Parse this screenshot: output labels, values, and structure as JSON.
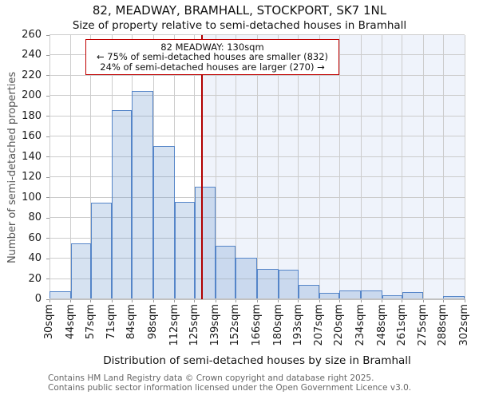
{
  "chart_data": {
    "type": "bar",
    "title": "82, MEADWAY, BRAMHALL, STOCKPORT, SK7 1NL",
    "subtitle": "Size of property relative to semi-detached houses in Bramhall",
    "xlabel": "Distribution of semi-detached houses by size in Bramhall",
    "ylabel": "Number of semi-detached properties",
    "bin_edges_sqm": [
      30,
      44,
      57,
      71,
      84,
      98,
      112,
      125,
      139,
      152,
      166,
      180,
      193,
      207,
      220,
      234,
      248,
      261,
      275,
      288,
      302
    ],
    "x_tick_labels": [
      "30sqm",
      "44sqm",
      "57sqm",
      "71sqm",
      "84sqm",
      "98sqm",
      "112sqm",
      "125sqm",
      "139sqm",
      "152sqm",
      "166sqm",
      "180sqm",
      "193sqm",
      "207sqm",
      "220sqm",
      "234sqm",
      "248sqm",
      "261sqm",
      "275sqm",
      "288sqm",
      "302sqm"
    ],
    "values": [
      8,
      55,
      95,
      186,
      205,
      151,
      96,
      111,
      53,
      41,
      30,
      29,
      14,
      6,
      9,
      9,
      4,
      7,
      0,
      3
    ],
    "ylim": [
      0,
      260
    ],
    "y_tick_step": 20,
    "grid": true,
    "legend": false,
    "marker_value_sqm": 130,
    "annotation": {
      "line1": "82 MEADWAY: 130sqm",
      "line2": "← 75% of semi-detached houses are smaller (832)",
      "line3": "24% of semi-detached houses are larger (270) →"
    },
    "colors": {
      "bar_fill": "rgba(91,140,200,0.25)",
      "bar_edge": "#5585c8",
      "marker_line": "#b00000",
      "annotation_border": "#c00000",
      "shaded_region": "#eff3fb",
      "gridline": "#cccccc"
    }
  },
  "footer": {
    "line1": "Contains HM Land Registry data © Crown copyright and database right 2025.",
    "line2": "Contains public sector information licensed under the Open Government Licence v3.0."
  }
}
